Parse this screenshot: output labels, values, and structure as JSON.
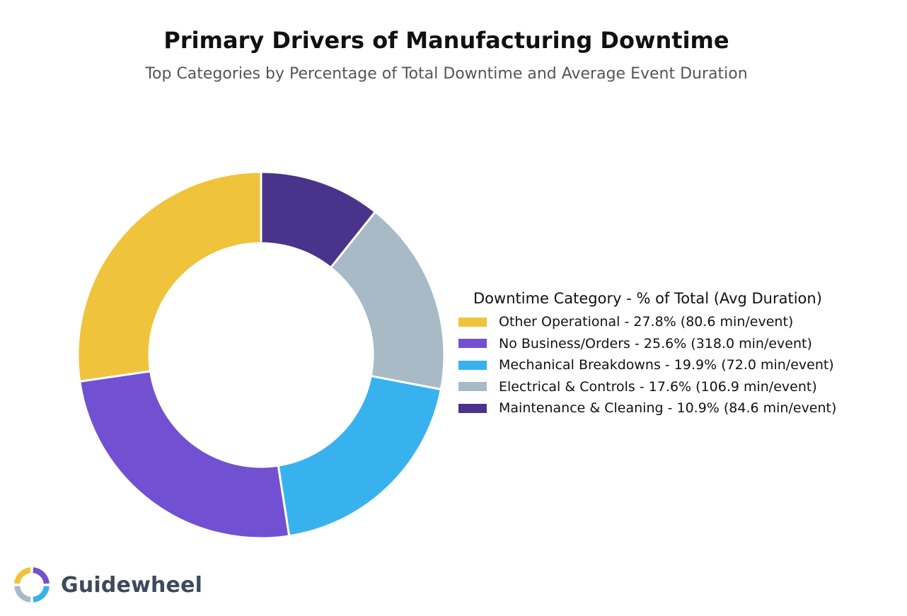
{
  "chart_data": {
    "type": "pie",
    "donut": true,
    "title": "Primary Drivers of Manufacturing Downtime",
    "subtitle": "Top Categories by Percentage of Total Downtime and Average Event Duration",
    "legend_title": "Downtime Category - % of Total (Avg Duration)",
    "legend_position": "right",
    "slices": [
      {
        "label": "Other Operational - 27.8% (80.6 min/event)",
        "category": "Other Operational",
        "value": 27.8,
        "avg_duration_min": 80.6,
        "color": "#F0C33C"
      },
      {
        "label": "No Business/Orders - 25.6% (318.0 min/event)",
        "category": "No Business/Orders",
        "value": 25.6,
        "avg_duration_min": 318.0,
        "color": "#7250D2"
      },
      {
        "label": "Mechanical Breakdowns - 19.9% (72.0 min/event)",
        "category": "Mechanical Breakdowns",
        "value": 19.9,
        "avg_duration_min": 72.0,
        "color": "#37B2EF"
      },
      {
        "label": "Electrical & Controls - 17.6% (106.9 min/event)",
        "category": "Electrical & Controls",
        "value": 17.6,
        "avg_duration_min": 106.9,
        "color": "#A8BAC6"
      },
      {
        "label": "Maintenance & Cleaning - 10.9% (84.6 min/event)",
        "category": "Maintenance & Cleaning",
        "value": 10.9,
        "avg_duration_min": 84.6,
        "color": "#4A338A"
      }
    ]
  },
  "brand": {
    "name": "Guidewheel",
    "colors": [
      "#F0C33C",
      "#7250D2",
      "#37B2EF",
      "#A8BAC6"
    ]
  }
}
